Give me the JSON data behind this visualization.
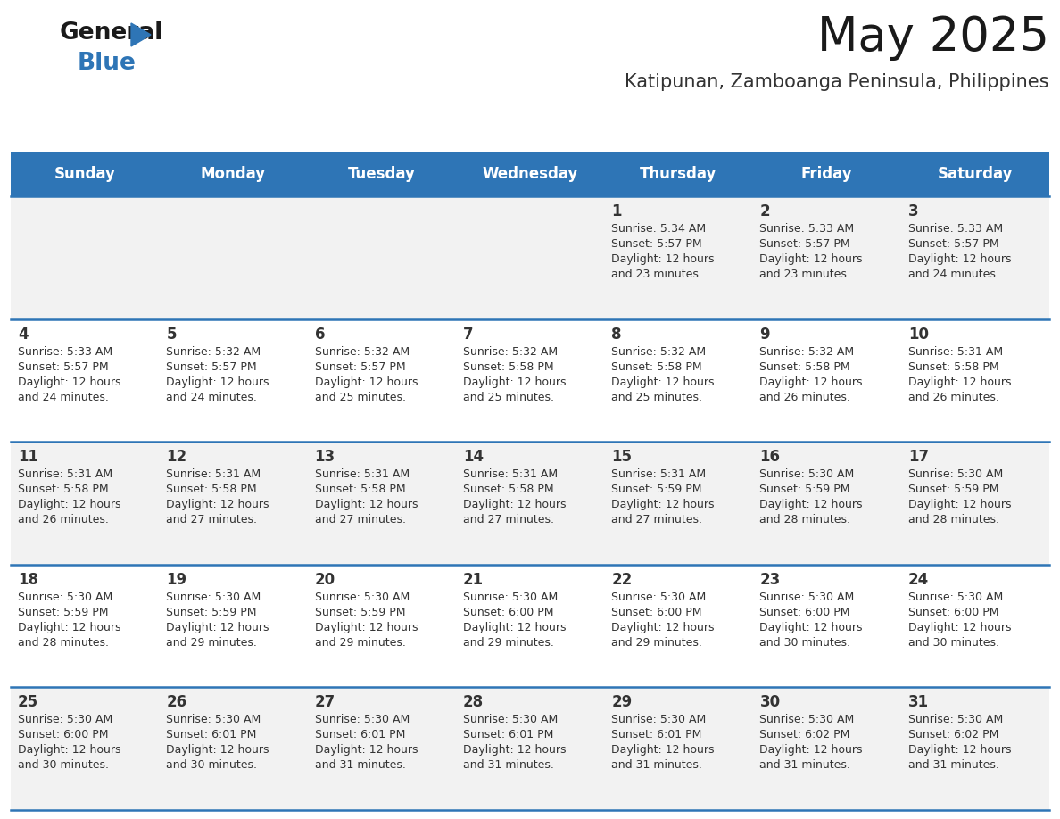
{
  "title": "May 2025",
  "subtitle": "Katipunan, Zamboanga Peninsula, Philippines",
  "days_of_week": [
    "Sunday",
    "Monday",
    "Tuesday",
    "Wednesday",
    "Thursday",
    "Friday",
    "Saturday"
  ],
  "header_bg": "#2E75B6",
  "header_text": "#FFFFFF",
  "row_bg_odd": "#F2F2F2",
  "row_bg_even": "#FFFFFF",
  "cell_border": "#2E75B6",
  "day_number_color": "#333333",
  "info_text_color": "#333333",
  "title_color": "#1a1a1a",
  "subtitle_color": "#333333",
  "calendar": [
    [
      null,
      null,
      null,
      null,
      {
        "day": 1,
        "sunrise": "5:34 AM",
        "sunset": "5:57 PM",
        "daylight": "12 hours and 23 minutes."
      },
      {
        "day": 2,
        "sunrise": "5:33 AM",
        "sunset": "5:57 PM",
        "daylight": "12 hours and 23 minutes."
      },
      {
        "day": 3,
        "sunrise": "5:33 AM",
        "sunset": "5:57 PM",
        "daylight": "12 hours and 24 minutes."
      }
    ],
    [
      {
        "day": 4,
        "sunrise": "5:33 AM",
        "sunset": "5:57 PM",
        "daylight": "12 hours and 24 minutes."
      },
      {
        "day": 5,
        "sunrise": "5:32 AM",
        "sunset": "5:57 PM",
        "daylight": "12 hours and 24 minutes."
      },
      {
        "day": 6,
        "sunrise": "5:32 AM",
        "sunset": "5:57 PM",
        "daylight": "12 hours and 25 minutes."
      },
      {
        "day": 7,
        "sunrise": "5:32 AM",
        "sunset": "5:58 PM",
        "daylight": "12 hours and 25 minutes."
      },
      {
        "day": 8,
        "sunrise": "5:32 AM",
        "sunset": "5:58 PM",
        "daylight": "12 hours and 25 minutes."
      },
      {
        "day": 9,
        "sunrise": "5:32 AM",
        "sunset": "5:58 PM",
        "daylight": "12 hours and 26 minutes."
      },
      {
        "day": 10,
        "sunrise": "5:31 AM",
        "sunset": "5:58 PM",
        "daylight": "12 hours and 26 minutes."
      }
    ],
    [
      {
        "day": 11,
        "sunrise": "5:31 AM",
        "sunset": "5:58 PM",
        "daylight": "12 hours and 26 minutes."
      },
      {
        "day": 12,
        "sunrise": "5:31 AM",
        "sunset": "5:58 PM",
        "daylight": "12 hours and 27 minutes."
      },
      {
        "day": 13,
        "sunrise": "5:31 AM",
        "sunset": "5:58 PM",
        "daylight": "12 hours and 27 minutes."
      },
      {
        "day": 14,
        "sunrise": "5:31 AM",
        "sunset": "5:58 PM",
        "daylight": "12 hours and 27 minutes."
      },
      {
        "day": 15,
        "sunrise": "5:31 AM",
        "sunset": "5:59 PM",
        "daylight": "12 hours and 27 minutes."
      },
      {
        "day": 16,
        "sunrise": "5:30 AM",
        "sunset": "5:59 PM",
        "daylight": "12 hours and 28 minutes."
      },
      {
        "day": 17,
        "sunrise": "5:30 AM",
        "sunset": "5:59 PM",
        "daylight": "12 hours and 28 minutes."
      }
    ],
    [
      {
        "day": 18,
        "sunrise": "5:30 AM",
        "sunset": "5:59 PM",
        "daylight": "12 hours and 28 minutes."
      },
      {
        "day": 19,
        "sunrise": "5:30 AM",
        "sunset": "5:59 PM",
        "daylight": "12 hours and 29 minutes."
      },
      {
        "day": 20,
        "sunrise": "5:30 AM",
        "sunset": "5:59 PM",
        "daylight": "12 hours and 29 minutes."
      },
      {
        "day": 21,
        "sunrise": "5:30 AM",
        "sunset": "6:00 PM",
        "daylight": "12 hours and 29 minutes."
      },
      {
        "day": 22,
        "sunrise": "5:30 AM",
        "sunset": "6:00 PM",
        "daylight": "12 hours and 29 minutes."
      },
      {
        "day": 23,
        "sunrise": "5:30 AM",
        "sunset": "6:00 PM",
        "daylight": "12 hours and 30 minutes."
      },
      {
        "day": 24,
        "sunrise": "5:30 AM",
        "sunset": "6:00 PM",
        "daylight": "12 hours and 30 minutes."
      }
    ],
    [
      {
        "day": 25,
        "sunrise": "5:30 AM",
        "sunset": "6:00 PM",
        "daylight": "12 hours and 30 minutes."
      },
      {
        "day": 26,
        "sunrise": "5:30 AM",
        "sunset": "6:01 PM",
        "daylight": "12 hours and 30 minutes."
      },
      {
        "day": 27,
        "sunrise": "5:30 AM",
        "sunset": "6:01 PM",
        "daylight": "12 hours and 31 minutes."
      },
      {
        "day": 28,
        "sunrise": "5:30 AM",
        "sunset": "6:01 PM",
        "daylight": "12 hours and 31 minutes."
      },
      {
        "day": 29,
        "sunrise": "5:30 AM",
        "sunset": "6:01 PM",
        "daylight": "12 hours and 31 minutes."
      },
      {
        "day": 30,
        "sunrise": "5:30 AM",
        "sunset": "6:02 PM",
        "daylight": "12 hours and 31 minutes."
      },
      {
        "day": 31,
        "sunrise": "5:30 AM",
        "sunset": "6:02 PM",
        "daylight": "12 hours and 31 minutes."
      }
    ]
  ],
  "logo_color_general": "#1a1a1a",
  "logo_color_blue": "#2E75B6",
  "title_fontsize": 38,
  "subtitle_fontsize": 15,
  "header_fontsize": 12,
  "day_num_fontsize": 12,
  "info_fontsize": 9.0
}
